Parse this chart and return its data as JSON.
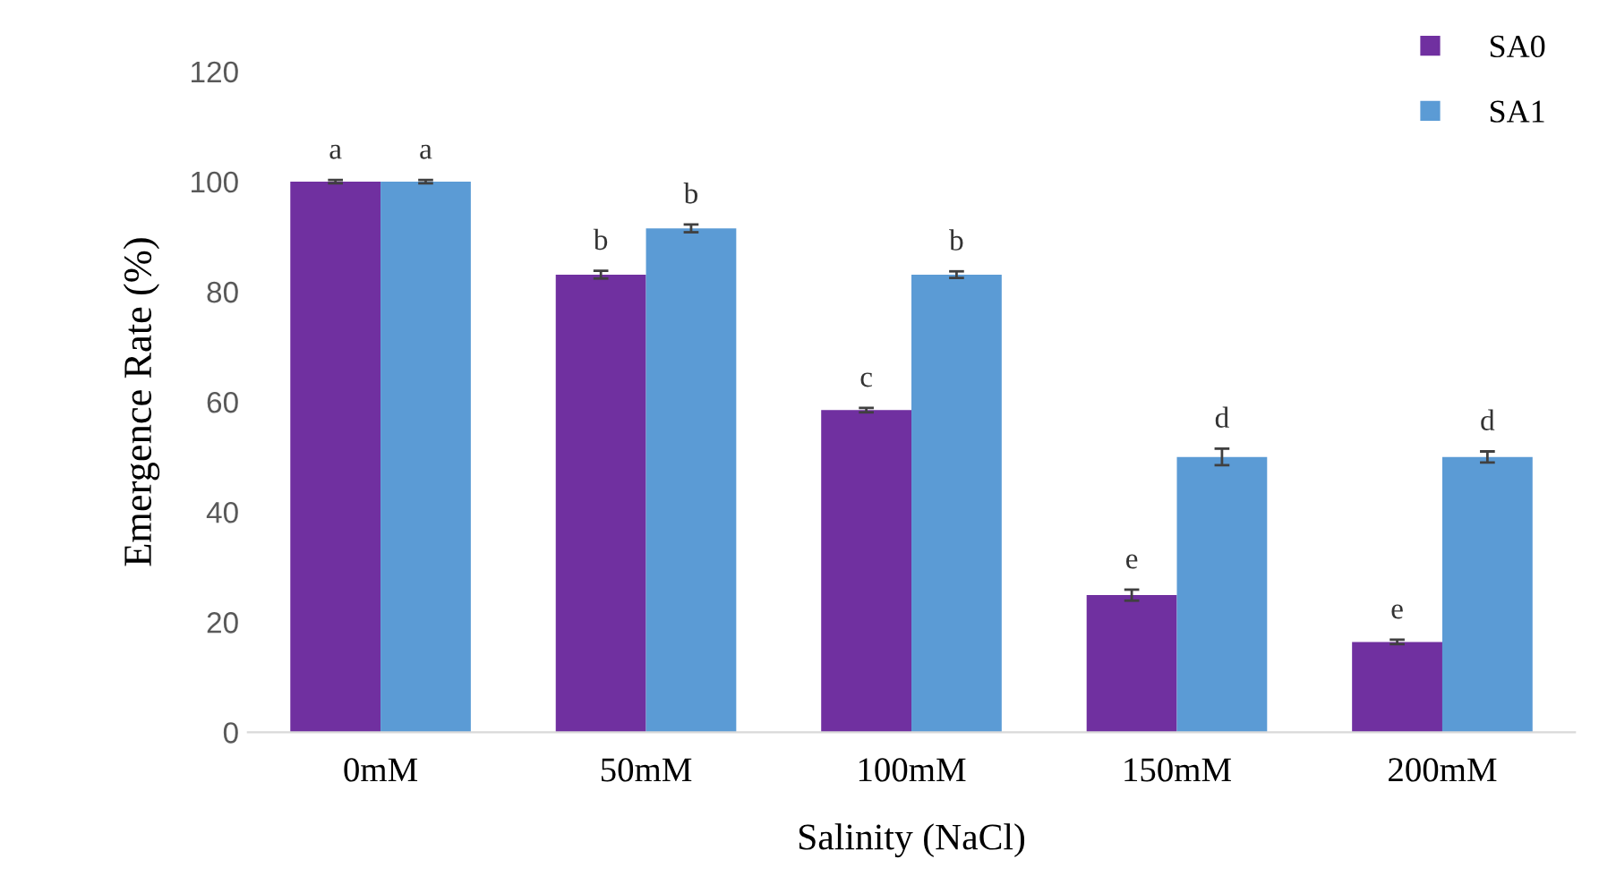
{
  "chart_data": {
    "type": "bar",
    "xlabel": "Salinity (NaCl)",
    "ylabel": "Emergence Rate (%)",
    "categories": [
      "0mM",
      "50mM",
      "100mM",
      "150mM",
      "200mM"
    ],
    "series": [
      {
        "name": "SA0",
        "color": "#7030a0",
        "values": [
          100,
          83.1,
          58.5,
          24.9,
          16.4
        ],
        "errors": [
          0.3,
          0.7,
          0.4,
          1,
          0.4
        ],
        "value_labels": [
          "a",
          "b",
          "c",
          "e",
          "e"
        ]
      },
      {
        "name": "SA1",
        "color": "#5b9bd5",
        "values": [
          100,
          91.5,
          83.1,
          50,
          50
        ],
        "errors": [
          0.3,
          0.7,
          0.6,
          1.5,
          1
        ],
        "value_labels": [
          "a",
          "b",
          "b",
          "d",
          "d"
        ]
      }
    ],
    "ylim": [
      0,
      120
    ],
    "yticks": [
      0,
      20,
      40,
      60,
      80,
      100,
      120
    ],
    "grid": false,
    "legend": "top right"
  }
}
